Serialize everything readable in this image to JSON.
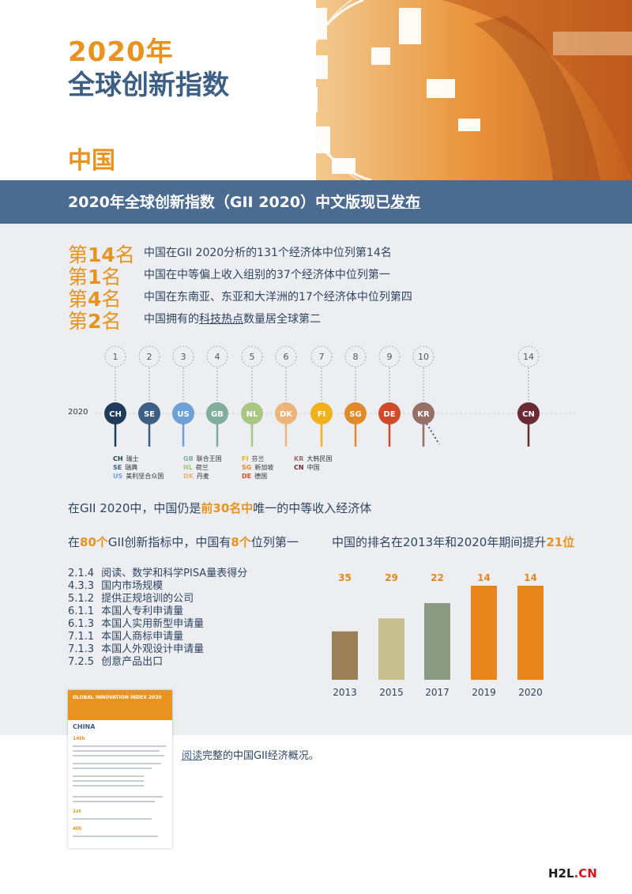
{
  "header": {
    "year_title": "2020年",
    "main_title": "全球创新指数",
    "country": "中国"
  },
  "banner": {
    "text_prefix": "2020年全球创新指数（GII 2020）中文版现已",
    "text_link": "发布"
  },
  "rankings": [
    {
      "prefix": "第",
      "number": "14",
      "suffix": "名",
      "desc": "中国在GII 2020分析的131个经济体中位列第14名"
    },
    {
      "prefix": "第",
      "number": "1",
      "suffix": "名",
      "desc": "中国在中等偏上收入组别的37个经济体中位列第一"
    },
    {
      "prefix": "第",
      "number": "4",
      "suffix": "名",
      "desc": "中国在东南亚、东亚和大洋洲的17个经济体中位列第四"
    },
    {
      "prefix": "第",
      "number": "2",
      "suffix": "名",
      "desc_pre": "中国拥有的",
      "desc_link": "科技热点",
      "desc_post": "数量居全球第二"
    }
  ],
  "timeline": {
    "year_label": "2020",
    "pins": [
      {
        "rank": "1",
        "code": "CH",
        "color": "#1f3c5a"
      },
      {
        "rank": "2",
        "code": "SE",
        "color": "#3d5f86"
      },
      {
        "rank": "3",
        "code": "US",
        "color": "#6fa0d6"
      },
      {
        "rank": "4",
        "code": "GB",
        "color": "#7fae9c"
      },
      {
        "rank": "5",
        "code": "NL",
        "color": "#a7c783"
      },
      {
        "rank": "6",
        "code": "DK",
        "color": "#eab47b"
      },
      {
        "rank": "7",
        "code": "FI",
        "color": "#f0b21c"
      },
      {
        "rank": "8",
        "code": "SG",
        "color": "#e08a2b"
      },
      {
        "rank": "9",
        "code": "DE",
        "color": "#d04a2a"
      },
      {
        "rank": "10",
        "code": "KR",
        "color": "#957067"
      },
      {
        "rank": "14",
        "code": "CN",
        "color": "#6a2b35"
      }
    ],
    "legend": [
      {
        "code": "CH",
        "name": "瑞士"
      },
      {
        "code": "SE",
        "name": "瑞典"
      },
      {
        "code": "US",
        "name": "美利坚合众国"
      },
      {
        "code": "GB",
        "name": "联合王国"
      },
      {
        "code": "NL",
        "name": "荷兰"
      },
      {
        "code": "DK",
        "name": "丹麦"
      },
      {
        "code": "FI",
        "name": "芬兰"
      },
      {
        "code": "SG",
        "name": "新加坡"
      },
      {
        "code": "DE",
        "name": "德国"
      },
      {
        "code": "KR",
        "name": "大韩民国"
      },
      {
        "code": "CN",
        "name": "中国"
      }
    ]
  },
  "middle_income": {
    "pre": "在GII 2020中，中国仍是",
    "highlight": "前30名中",
    "post": "唯一的中等收入经济体"
  },
  "indicators": {
    "heading_pre": "在",
    "heading_n1": "80个",
    "heading_mid": "GII创新指标中，中国有",
    "heading_n2": "8个",
    "heading_post": "位列第一",
    "items": [
      {
        "code": "2.1.4",
        "label": "阅读、数学和科学PISA量表得分"
      },
      {
        "code": "4.3.3",
        "label": "国内市场规模"
      },
      {
        "code": "5.1.2",
        "label": "提供正规培训的公司"
      },
      {
        "code": "6.1.1",
        "label": "本国人专利申请量"
      },
      {
        "code": "6.1.3",
        "label": "本国人实用新型申请量"
      },
      {
        "code": "7.1.1",
        "label": "本国人商标申请量"
      },
      {
        "code": "7.1.3",
        "label": "本国人外观设计申请量"
      },
      {
        "code": "7.2.5",
        "label": "创意产品出口"
      }
    ]
  },
  "rank_change": {
    "heading_pre": "中国的排名在2013年和2020年期间提升",
    "heading_num": "21位"
  },
  "chart_data": {
    "type": "bar",
    "categories": [
      "2013",
      "2015",
      "2017",
      "2019",
      "2020"
    ],
    "values": [
      35,
      29,
      22,
      14,
      14
    ],
    "colors": [
      "#9b7f57",
      "#c6c08f",
      "#8c9a83",
      "#e8861c",
      "#e8861c"
    ]
  },
  "report": {
    "thumb_title": "GLOBAL INNOVATION INDEX 2020",
    "thumb_country": "CHINA",
    "thumb_rank1": "14th",
    "thumb_rank2": "1st",
    "thumb_rank3": "4th",
    "link_text": "阅读",
    "link_rest": "完整的中国GII经济概况。"
  },
  "watermark": {
    "part1": "H2L",
    "part2": ".CN"
  }
}
